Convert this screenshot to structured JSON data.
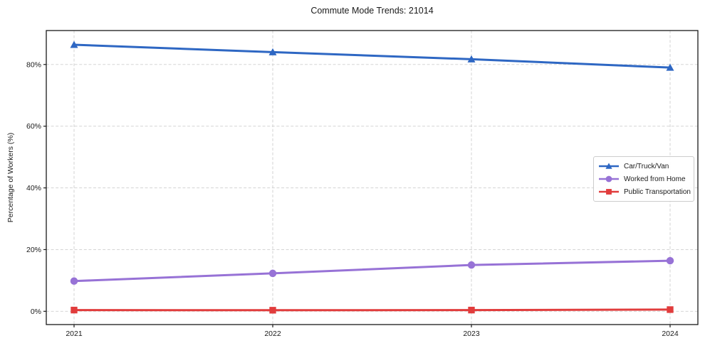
{
  "page": {
    "background": "#ffffff"
  },
  "chart_data": {
    "type": "line",
    "title": "Commute Mode Trends: 21014",
    "xlabel": "",
    "ylabel": "Percentage of Workers (%)",
    "categories": [
      "2021",
      "2022",
      "2023",
      "2024"
    ],
    "y_ticks": [
      0,
      20,
      40,
      60,
      80
    ],
    "y_tick_labels": [
      "0%",
      "20%",
      "40%",
      "60%",
      "80%"
    ],
    "ylim": [
      -4.3,
      91
    ],
    "grid": true,
    "grid_style": "dashed",
    "legend_position": "center-right",
    "axis_color": "#1a1a1a",
    "grid_color": "#cfcfcf",
    "series": [
      {
        "name": "Car/Truck/Van",
        "marker": "triangle",
        "color": "#2e67c3",
        "values": [
          86.4,
          84.0,
          81.7,
          79.0
        ]
      },
      {
        "name": "Worked from Home",
        "marker": "circle",
        "color": "#9772d6",
        "values": [
          9.8,
          12.3,
          15.0,
          16.4
        ]
      },
      {
        "name": "Public Transportation",
        "marker": "square",
        "color": "#e13c3c",
        "values": [
          0.4,
          0.35,
          0.4,
          0.55
        ]
      }
    ]
  }
}
